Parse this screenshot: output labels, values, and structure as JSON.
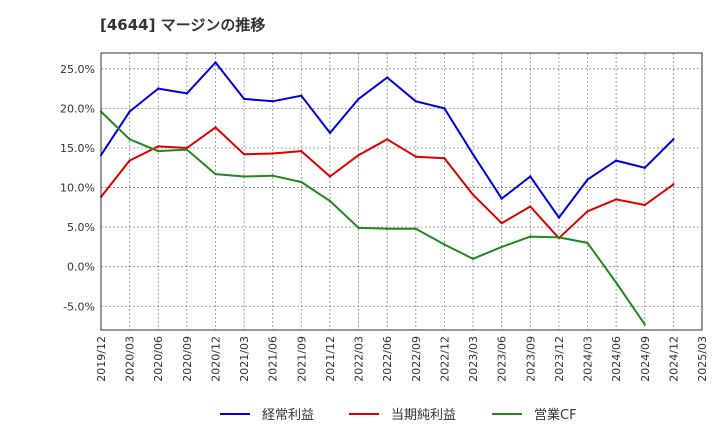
{
  "chart_data": {
    "type": "line",
    "title": "[4644]  マージンの推移",
    "x": [
      "2019/12",
      "2020/03",
      "2020/06",
      "2020/09",
      "2020/12",
      "2021/03",
      "2021/06",
      "2021/09",
      "2021/12",
      "2022/03",
      "2022/06",
      "2022/09",
      "2022/12",
      "2023/03",
      "2023/06",
      "2023/09",
      "2023/12",
      "2024/03",
      "2024/06",
      "2024/09",
      "2024/12",
      "2025/03"
    ],
    "y_ticks": [
      "25.0%",
      "20.0%",
      "15.0%",
      "10.0%",
      "5.0%",
      "0.0%",
      "-5.0%"
    ],
    "ylim": [
      -8,
      27
    ],
    "grid": true,
    "legend_position": "bottom",
    "series": [
      {
        "name": "経常利益",
        "color": "#0000dd",
        "values": [
          14.1,
          19.6,
          22.5,
          21.9,
          25.8,
          21.2,
          20.9,
          21.6,
          16.9,
          21.2,
          23.9,
          20.9,
          20.0,
          14.2,
          8.6,
          11.4,
          6.2,
          11.0,
          13.4,
          12.5,
          16.1,
          null
        ]
      },
      {
        "name": "当期純利益",
        "color": "#dd0000",
        "values": [
          8.8,
          13.4,
          15.2,
          15.0,
          17.6,
          14.2,
          14.3,
          14.6,
          11.4,
          14.1,
          16.1,
          13.9,
          13.7,
          9.1,
          5.5,
          7.6,
          3.6,
          7.0,
          8.5,
          7.8,
          10.4,
          null
        ]
      },
      {
        "name": "営業CF",
        "color": "#228822",
        "values": [
          19.6,
          16.1,
          14.6,
          14.8,
          11.7,
          11.4,
          11.5,
          10.7,
          8.3,
          4.9,
          4.8,
          4.8,
          2.8,
          1.0,
          2.5,
          3.8,
          3.7,
          3.0,
          -2.0,
          -7.3,
          null,
          null
        ]
      }
    ]
  }
}
